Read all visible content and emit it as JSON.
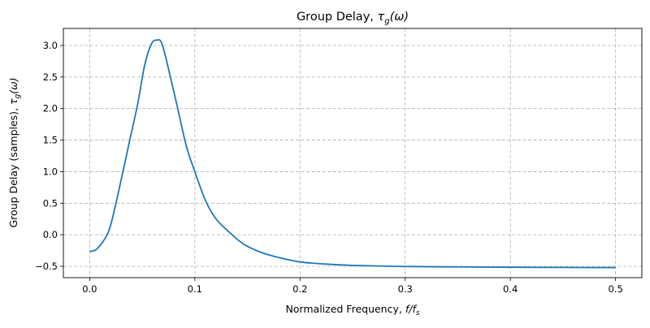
{
  "chart_data": {
    "type": "line",
    "title": "Group Delay, τ_g(ω)",
    "title_parts": {
      "text": "Group Delay, ",
      "sym": "τ",
      "sub": "g",
      "arg": "(ω)"
    },
    "xlabel": "Normalized Frequency, f/f_s",
    "xlabel_parts": {
      "text": "Normalized Frequency, ",
      "sym": "f/f",
      "sub": "s"
    },
    "ylabel": "Group Delay (samples), τ_g(ω)",
    "ylabel_parts": {
      "text": "Group Delay (samples), ",
      "sym": "τ",
      "sub": "g",
      "arg": "(ω)"
    },
    "xlim": [
      -0.025,
      0.525
    ],
    "ylim": [
      -0.68,
      3.27
    ],
    "xticks": [
      0.0,
      0.1,
      0.2,
      0.3,
      0.4,
      0.5
    ],
    "xtick_labels": [
      "0.0",
      "0.1",
      "0.2",
      "0.3",
      "0.4",
      "0.5"
    ],
    "yticks": [
      -0.5,
      0.0,
      0.5,
      1.0,
      1.5,
      2.0,
      2.5,
      3.0
    ],
    "ytick_labels": [
      "−0.5",
      "0.0",
      "0.5",
      "1.0",
      "1.5",
      "2.0",
      "2.5",
      "3.0"
    ],
    "grid": true,
    "color": "#1f77b4",
    "series": [
      {
        "x": [
          0.0,
          0.0072,
          0.0175,
          0.0239,
          0.0316,
          0.038,
          0.0458,
          0.0522,
          0.0586,
          0.0638,
          0.0689,
          0.0766,
          0.0843,
          0.092,
          0.1,
          0.11,
          0.1203,
          0.1332,
          0.146,
          0.16,
          0.175,
          0.2,
          0.225,
          0.25,
          0.3,
          0.35,
          0.4,
          0.45,
          0.5
        ],
        "y": [
          -0.265,
          -0.22,
          0.034,
          0.42,
          1.0,
          1.49,
          2.085,
          2.68,
          3.02,
          3.085,
          3.02,
          2.51,
          1.96,
          1.4,
          1.0,
          0.547,
          0.248,
          0.034,
          -0.145,
          -0.26,
          -0.34,
          -0.43,
          -0.465,
          -0.485,
          -0.503,
          -0.51,
          -0.515,
          -0.518,
          -0.52
        ]
      }
    ]
  }
}
